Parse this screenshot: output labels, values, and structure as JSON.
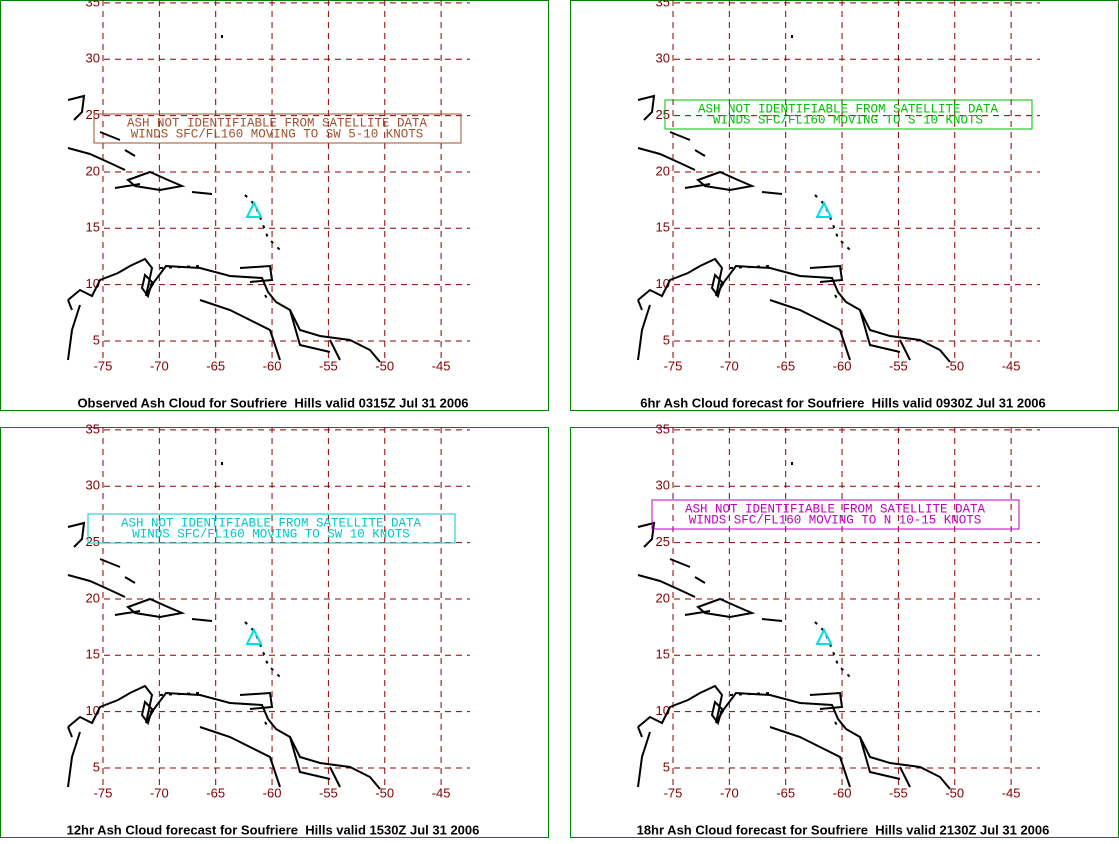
{
  "lat_labels": [
    5,
    10,
    15,
    20,
    25,
    30,
    35
  ],
  "lon_labels": [
    -75,
    -70,
    -65,
    -60,
    -55,
    -50,
    -45
  ],
  "panels": [
    {
      "title": "Observed Ash Cloud for Soufriere  Hills valid 0315Z Jul 31 2006",
      "annotation": [
        "ASH NOT IDENTIFIABLE FROM SATELLITE DATA",
        "WINDS SFC/FL160 MOVING TO SW 5-10 KNOTS"
      ],
      "color": "#a0522d"
    },
    {
      "title": "6hr Ash Cloud forecast for Soufriere  Hills valid 0930Z Jul 31 2006",
      "annotation": [
        "ASH NOT IDENTIFIABLE FROM SATELLITE DATA",
        "WINDS SFC/FL160 MOVING TO S 10 KNOTS"
      ],
      "color": "#00c000"
    },
    {
      "title": "12hr Ash Cloud forecast for Soufriere  Hills valid 1530Z Jul 31 2006",
      "annotation": [
        "ASH NOT IDENTIFIABLE FROM SATELLITE DATA",
        "WINDS SFC/FL160 MOVING TO SW 10 KNOTS"
      ],
      "color": "#00c8c8"
    },
    {
      "title": "18hr Ash Cloud forecast for Soufriere  Hills valid 2130Z Jul 31 2006",
      "annotation": [
        "ASH NOT IDENTIFIABLE FROM SATELLITE DATA",
        "WINDS SFC/FL160 MOVING TO N 10-15 KNOTS"
      ],
      "color": "#c000c0"
    }
  ]
}
